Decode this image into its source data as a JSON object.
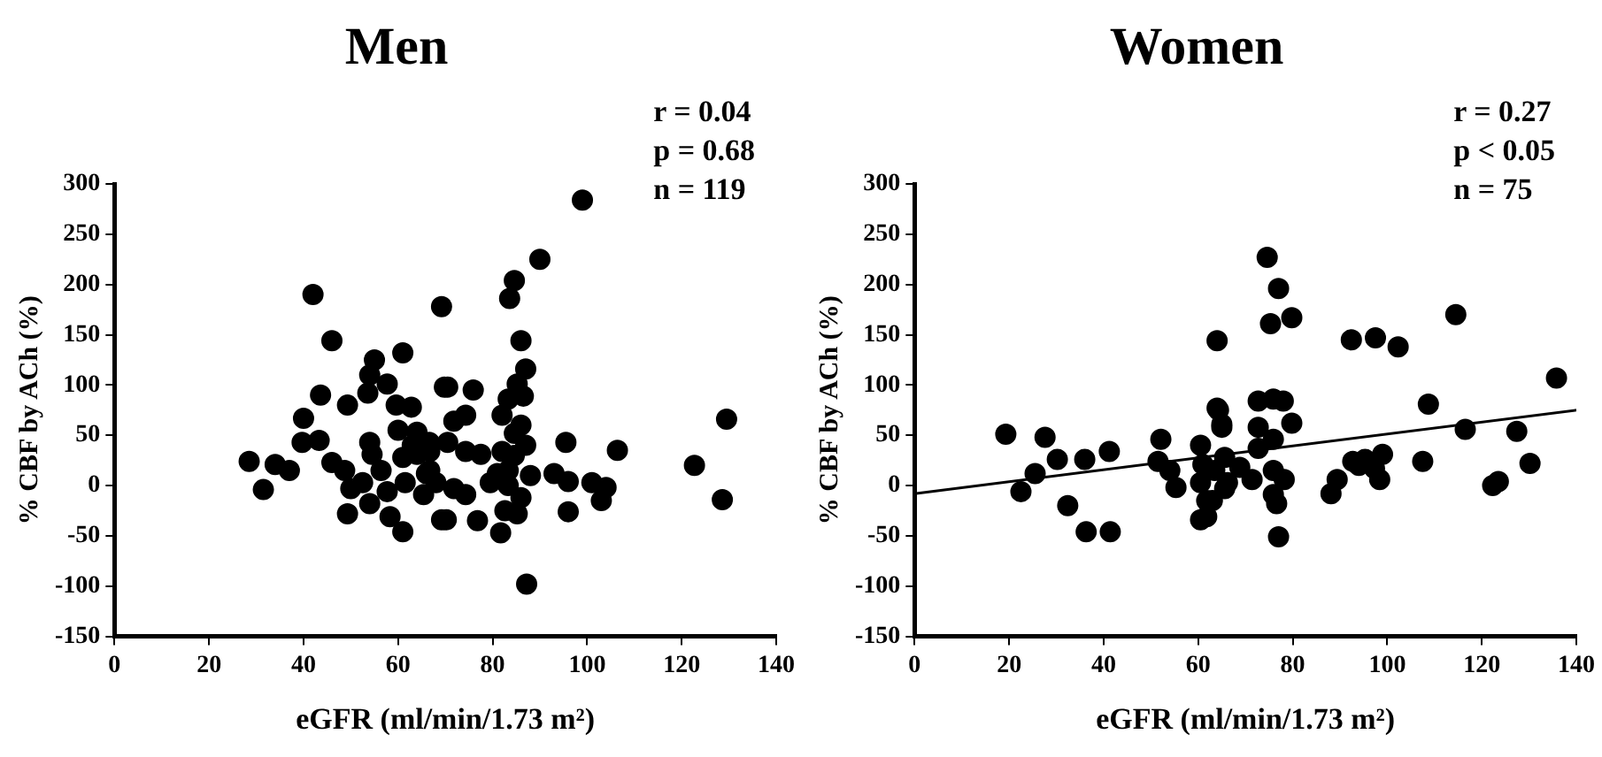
{
  "chart_data": [
    {
      "type": "scatter",
      "title": "Men",
      "xlabel": "eGFR (ml/min/1.73 m²)",
      "ylabel": "% CBF by ACh (%)",
      "annotations": [
        "r = 0.04",
        "p = 0.68",
        "n = 119"
      ],
      "xlim": [
        0,
        140
      ],
      "xticks": [
        0,
        20,
        40,
        60,
        80,
        100,
        120,
        140
      ],
      "ylim": [
        -150,
        300
      ],
      "yticks": [
        -150,
        -100,
        -50,
        0,
        50,
        100,
        150,
        200,
        250,
        300
      ],
      "grid": false,
      "legend": false,
      "marker": "circle",
      "series": [
        {
          "color": "#000000",
          "x": [
            28.5,
            31.5,
            34,
            37,
            42,
            46,
            40,
            43.6,
            39.7,
            43.3,
            46,
            49.3,
            54,
            55,
            57.7,
            61,
            53.6,
            59.6,
            62.8,
            60,
            64,
            63,
            66.6,
            69.2,
            69.8,
            54,
            54.5,
            48.7,
            50,
            52.5,
            56.4,
            57.7,
            54,
            49.3,
            58.3,
            61,
            61.5,
            65.4,
            66,
            69.2,
            61,
            64,
            99,
            90,
            84.6,
            83.6,
            86,
            87,
            70.5,
            75.9,
            74.3,
            71.8,
            86.5,
            83.3,
            82,
            84.6,
            95.5,
            106.4,
            70.5,
            74.3,
            77.5,
            87,
            82,
            83.3,
            93,
            96,
            101,
            104,
            103,
            83.3,
            86,
            82.6,
            85.2,
            70.2,
            76.8,
            81.7,
            96,
            87.2,
            129.5,
            122.7,
            128.6,
            66.7,
            66.7,
            71.8,
            68,
            79.5,
            74.3,
            81,
            84.6,
            86,
            85.2,
            88
          ],
          "values": [
            24,
            -4,
            21,
            15,
            190,
            144,
            67,
            90,
            43,
            45,
            23,
            80,
            110,
            125,
            101,
            132,
            92,
            80,
            78,
            55,
            53,
            40,
            43,
            178,
            98,
            43,
            31,
            15,
            -3,
            3,
            15,
            -6,
            -18,
            -28,
            -31,
            -46,
            3,
            -9,
            12,
            -34,
            28,
            31,
            284,
            225,
            204,
            186,
            144,
            116,
            98,
            95,
            70,
            64,
            89,
            86,
            70,
            52,
            43,
            35,
            43,
            34,
            31,
            40,
            34,
            15,
            12,
            4,
            3,
            -2,
            -15,
            0,
            -12,
            -25,
            -28,
            -34,
            -35,
            -47,
            -26,
            -98,
            66,
            20,
            -14,
            34,
            15,
            -3,
            3,
            3,
            -9,
            12,
            30,
            60,
            101,
            10
          ]
        }
      ]
    },
    {
      "type": "scatter",
      "title": "Women",
      "xlabel": "eGFR (ml/min/1.73 m²)",
      "ylabel": "% CBF by ACh (%)",
      "annotations": [
        "r = 0.27",
        "p < 0.05",
        "n = 75"
      ],
      "xlim": [
        0,
        140
      ],
      "xticks": [
        0,
        20,
        40,
        60,
        80,
        100,
        120,
        140
      ],
      "ylim": [
        -150,
        300
      ],
      "yticks": [
        -150,
        -100,
        -50,
        0,
        50,
        100,
        150,
        200,
        250,
        300
      ],
      "grid": false,
      "legend": false,
      "marker": "circle",
      "series": [
        {
          "color": "#000000",
          "x": [
            19.3,
            22.5,
            25.5,
            27.6,
            30.2,
            32.4,
            36,
            36.3,
            41.2,
            41.4,
            52.1,
            51.5,
            55.3,
            54,
            64,
            64,
            65,
            60.5,
            61,
            60.5,
            61.8,
            60.5,
            61.8,
            63.5,
            65.6,
            74.6,
            77,
            75.3,
            79.8,
            72.7,
            75.9,
            78,
            64.3,
            65,
            72.7,
            79.8,
            75.9,
            72.7,
            65.6,
            68.8,
            71.4,
            66.2,
            75.9,
            78.2,
            75.9,
            76.6,
            77,
            63,
            92.4,
            97.5,
            102.3,
            114.5,
            135.8,
            108.7,
            116.5,
            127.4,
            130.2,
            107.5,
            122.3,
            123.5,
            88.1,
            89.4,
            92.7,
            95.3,
            99,
            94,
            97.3,
            98.4
          ],
          "values": [
            51,
            -6,
            12,
            48,
            26,
            -20,
            26,
            -46,
            34,
            -46,
            46,
            24,
            -2,
            15,
            144,
            77,
            61,
            40,
            21,
            3,
            -15,
            -34,
            -31,
            15,
            -3,
            227,
            196,
            161,
            167,
            84,
            86,
            84,
            75,
            58,
            58,
            62,
            46,
            37,
            28,
            18,
            6,
            3,
            15,
            6,
            -9,
            -18,
            -51,
            -15,
            145,
            147,
            138,
            170,
            107,
            81,
            56,
            54,
            22,
            24,
            0,
            4,
            -8,
            6,
            24,
            26,
            31,
            20,
            17,
            6
          ]
        },
        {
          "type": "line",
          "color": "#000000",
          "marker": "none",
          "x": [
            0,
            140
          ],
          "values": [
            -8,
            75
          ]
        }
      ]
    }
  ]
}
